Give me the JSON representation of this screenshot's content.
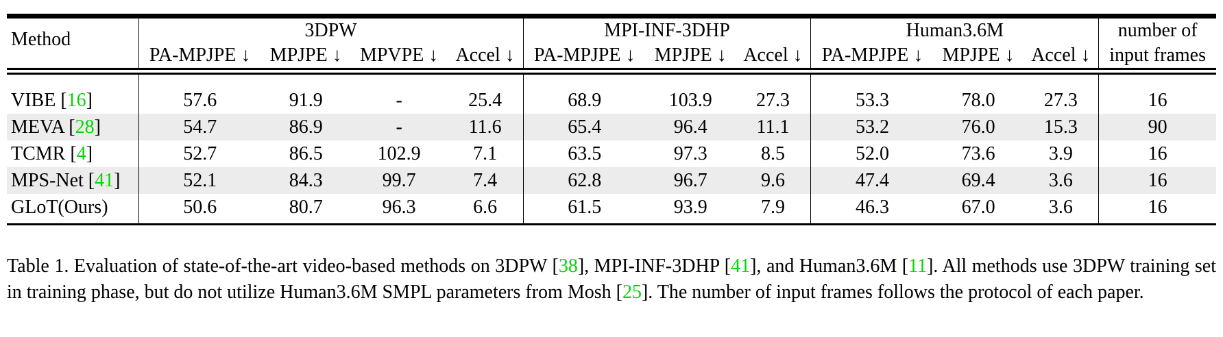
{
  "table": {
    "method_header": "Method",
    "groups": [
      {
        "name": "3DPW",
        "cols": [
          "PA-MPJPE ↓",
          "MPJPE ↓",
          "MPVPE ↓",
          "Accel ↓"
        ]
      },
      {
        "name": "MPI-INF-3DHP",
        "cols": [
          "PA-MPJPE ↓",
          "MPJPE ↓",
          "Accel ↓"
        ]
      },
      {
        "name": "Human3.6M",
        "cols": [
          "PA-MPJPE ↓",
          "MPJPE ↓",
          "Accel ↓"
        ]
      }
    ],
    "frames_header_line1": "number of",
    "frames_header_line2": "input frames",
    "rows": [
      {
        "method": "VIBE",
        "cite": "16",
        "shaded": false,
        "bold_method": false,
        "values": [
          "57.6",
          "91.9",
          "-",
          "25.4",
          "68.9",
          "103.9",
          "27.3",
          "53.3",
          "78.0",
          "27.3",
          "16"
        ],
        "bold": [
          false,
          false,
          false,
          false,
          false,
          false,
          false,
          false,
          false,
          false,
          true
        ]
      },
      {
        "method": "MEVA",
        "cite": "28",
        "shaded": true,
        "bold_method": false,
        "values": [
          "54.7",
          "86.9",
          "-",
          "11.6",
          "65.4",
          "96.4",
          "11.1",
          "53.2",
          "76.0",
          "15.3",
          "90"
        ],
        "bold": [
          false,
          false,
          false,
          false,
          false,
          false,
          false,
          false,
          false,
          false,
          false
        ]
      },
      {
        "method": "TCMR",
        "cite": "4",
        "shaded": false,
        "bold_method": false,
        "values": [
          "52.7",
          "86.5",
          "102.9",
          "7.1",
          "63.5",
          "97.3",
          "8.5",
          "52.0",
          "73.6",
          "3.9",
          "16"
        ],
        "bold": [
          false,
          false,
          false,
          false,
          false,
          false,
          false,
          false,
          false,
          false,
          true
        ]
      },
      {
        "method": "MPS-Net",
        "cite": "41",
        "shaded": true,
        "bold_method": false,
        "values": [
          "52.1",
          "84.3",
          "99.7",
          "7.4",
          "62.8",
          "96.7",
          "9.6",
          "47.4",
          "69.4",
          "3.6",
          "16"
        ],
        "bold": [
          false,
          false,
          false,
          false,
          false,
          false,
          false,
          false,
          false,
          true,
          true
        ]
      },
      {
        "method": "GLoT(Ours)",
        "cite": "",
        "shaded": false,
        "bold_method": true,
        "values": [
          "50.6",
          "80.7",
          "96.3",
          "6.6",
          "61.5",
          "93.9",
          "7.9",
          "46.3",
          "67.0",
          "3.6",
          "16"
        ],
        "bold": [
          true,
          true,
          true,
          true,
          true,
          true,
          true,
          true,
          true,
          true,
          true
        ]
      }
    ]
  },
  "caption": {
    "parts": [
      {
        "t": "Table 1.  Evaluation of state-of-the-art video-based methods on 3DPW [",
        "c": false
      },
      {
        "t": "38",
        "c": true
      },
      {
        "t": "], MPI-INF-3DHP [",
        "c": false
      },
      {
        "t": "41",
        "c": true
      },
      {
        "t": "], and Human3.6M [",
        "c": false
      },
      {
        "t": "11",
        "c": true
      },
      {
        "t": "].  All methods use 3DPW training set in training phase, but do not utilize Human3.6M SMPL parameters from Mosh [",
        "c": false
      },
      {
        "t": "25",
        "c": true
      },
      {
        "t": "]. The number of input frames follows the protocol of each paper.",
        "c": false
      }
    ]
  }
}
